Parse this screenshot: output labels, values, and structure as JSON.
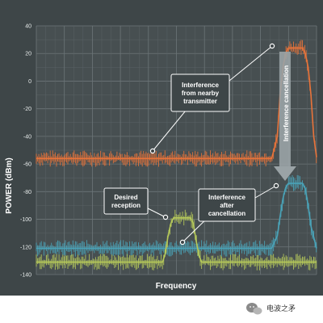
{
  "chart_data": {
    "type": "line",
    "title": "",
    "xlabel": "Frequency",
    "ylabel": "POWER (dBm)",
    "ylim": [
      -140,
      40
    ],
    "yticks": [
      40,
      20,
      0,
      -20,
      -40,
      -60,
      -80,
      -100,
      -120,
      -140
    ],
    "xlim": [
      0,
      100
    ],
    "grid": true,
    "series": [
      {
        "key": "interference",
        "color": "#e8733a",
        "points": [
          [
            0,
            -56
          ],
          [
            84,
            -56
          ],
          [
            86,
            -40
          ],
          [
            87,
            -10
          ],
          [
            88,
            10
          ],
          [
            89,
            20
          ],
          [
            90,
            24
          ],
          [
            95,
            24
          ],
          [
            96,
            20
          ],
          [
            97,
            10
          ],
          [
            98,
            -10
          ],
          [
            99,
            -40
          ],
          [
            100,
            -55
          ]
        ]
      },
      {
        "key": "cancelled",
        "color": "#4aa3b8",
        "points": [
          [
            0,
            -121
          ],
          [
            84,
            -121
          ],
          [
            86,
            -112
          ],
          [
            87,
            -98
          ],
          [
            88,
            -85
          ],
          [
            89,
            -77
          ],
          [
            90,
            -74
          ],
          [
            95,
            -74
          ],
          [
            96,
            -78
          ],
          [
            97,
            -90
          ],
          [
            98,
            -105
          ],
          [
            100,
            -121
          ]
        ]
      },
      {
        "key": "desired",
        "color": "#b6c95a",
        "points": [
          [
            0,
            -131
          ],
          [
            45,
            -131
          ],
          [
            46,
            -125
          ],
          [
            47,
            -112
          ],
          [
            48,
            -103
          ],
          [
            49,
            -99
          ],
          [
            55,
            -99
          ],
          [
            56,
            -103
          ],
          [
            57,
            -115
          ],
          [
            58,
            -126
          ],
          [
            59,
            -131
          ],
          [
            100,
            -131
          ]
        ]
      }
    ],
    "annotations": [
      {
        "key": "a_interference",
        "text": [
          "Interference",
          "from nearby",
          "transmitter"
        ]
      },
      {
        "key": "a_desired",
        "text": [
          "Desired",
          "reception"
        ]
      },
      {
        "key": "a_after",
        "text": [
          "Interference",
          "after",
          "cancellation"
        ]
      },
      {
        "key": "a_cancel",
        "text": [
          "Interference cancellation"
        ]
      }
    ]
  },
  "watermark": {
    "text": "电波之矛",
    "icon": "wechat-icon"
  }
}
